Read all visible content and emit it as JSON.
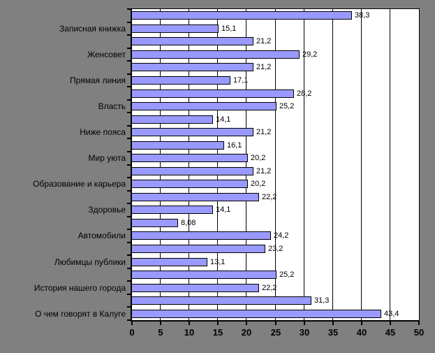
{
  "chart_data": {
    "type": "bar",
    "orientation": "horizontal",
    "title": "",
    "xlabel": "",
    "ylabel": "",
    "xlim": [
      0,
      50
    ],
    "grid": true,
    "legend": "none",
    "categories": [
      "Записная книжка",
      "Женсовет",
      "Прямая линия",
      "Власть",
      "Ниже пояса",
      "Мир уюта",
      "Образование и карьера",
      "Здоровье",
      "Автомобили",
      "Любимцы публики",
      "История нашего города",
      "О чем говорят в Калуге"
    ],
    "category_label_interval": 2,
    "values": [
      38.3,
      15.1,
      21.2,
      29.2,
      21.2,
      17.1,
      28.2,
      25.2,
      14.1,
      21.2,
      16.1,
      20.2,
      21.2,
      20.2,
      22.2,
      14.1,
      8.08,
      24.2,
      23.2,
      13.1,
      25.2,
      22.2,
      31.3,
      43.4
    ],
    "value_labels": [
      "38,3",
      "15,1",
      "21,2",
      "29,2",
      "21,2",
      "17,1",
      "28,2",
      "25,2",
      "14,1",
      "21,2",
      "16,1",
      "20,2",
      "21,2",
      "20,2",
      "22,2",
      "14,1",
      "8,08",
      "24,2",
      "23,2",
      "13,1",
      "25,2",
      "22,2",
      "31,3",
      "43,4"
    ],
    "x_ticks": [
      "0",
      "5",
      "10",
      "15",
      "20",
      "25",
      "30",
      "35",
      "40",
      "45",
      "50"
    ],
    "colors": {
      "chart_bg": "#808080",
      "plot_bg": "#FFFFFF",
      "bar_fill": "#9999FF",
      "bar_border": "#000000",
      "gridline": "#000000",
      "text": "#000000"
    }
  }
}
